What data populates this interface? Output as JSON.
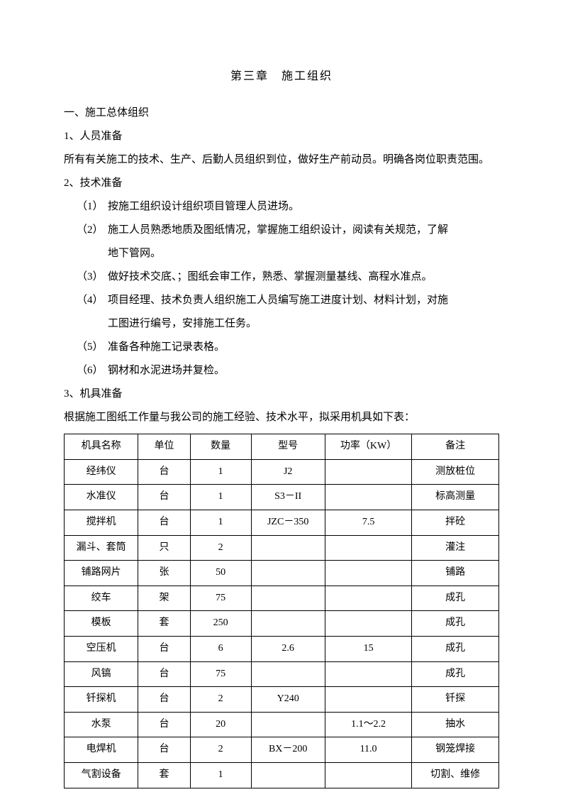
{
  "chapter_title": "第三章　施工组织",
  "section1": "一、施工总体组织",
  "sub1": "1、人员准备",
  "para1": "所有有关施工的技术、生产、后勤人员组织到位，做好生产前动员。明确各岗位职责范围。",
  "sub2": "2、技术准备",
  "items": [
    {
      "num": "（1）",
      "text": "按施工组织设计组织项目管理人员进场。"
    },
    {
      "num": "（2）",
      "text": "施工人员熟悉地质及图纸情况，掌握施工组织设计，阅读有关规范，了解",
      "cont": "地下管网。"
    },
    {
      "num": "（3）",
      "text": "做好技术交底、；图纸会审工作，熟悉、掌握测量基线、高程水准点。"
    },
    {
      "num": "（4）",
      "text": "项目经理、技术负责人组织施工人员编写施工进度计划、材料计划，对施",
      "cont": "工图进行编号，安排施工任务。"
    },
    {
      "num": "（5）",
      "text": "准备各种施工记录表格。"
    },
    {
      "num": "（6）",
      "text": "钢材和水泥进场并复检。"
    }
  ],
  "sub3": "3、机具准备",
  "para3": "根据施工图纸工作量与我公司的施工经验、技术水平，拟采用机具如下表：",
  "table": {
    "headers": [
      "机具名称",
      "单位",
      "数量",
      "型号",
      "功率（KW）",
      "备注"
    ],
    "rows": [
      [
        "经纬仪",
        "台",
        "1",
        "J2",
        "",
        "测放桩位"
      ],
      [
        "水准仪",
        "台",
        "1",
        "S3－II",
        "",
        "标高测量"
      ],
      [
        "搅拌机",
        "台",
        "1",
        "JZC－350",
        "7.5",
        "拌砼"
      ],
      [
        "漏斗、套筒",
        "只",
        "2",
        "",
        "",
        "灌注"
      ],
      [
        "铺路网片",
        "张",
        "50",
        "",
        "",
        "铺路"
      ],
      [
        "绞车",
        "架",
        "75",
        "",
        "",
        "成孔"
      ],
      [
        "模板",
        "套",
        "250",
        "",
        "",
        "成孔"
      ],
      [
        "空压机",
        "台",
        "6",
        "2.6",
        "15",
        "成孔"
      ],
      [
        "风镐",
        "台",
        "75",
        "",
        "",
        "成孔"
      ],
      [
        "钎探机",
        "台",
        "2",
        "Y240",
        "",
        "钎探"
      ],
      [
        "水泵",
        "台",
        "20",
        "",
        "1.1～2.2",
        "抽水"
      ],
      [
        "电焊机",
        "台",
        "2",
        "BX－200",
        "11.0",
        "钢笼焊接"
      ],
      [
        "气割设备",
        "套",
        "1",
        "",
        "",
        "切割、维修"
      ]
    ]
  }
}
